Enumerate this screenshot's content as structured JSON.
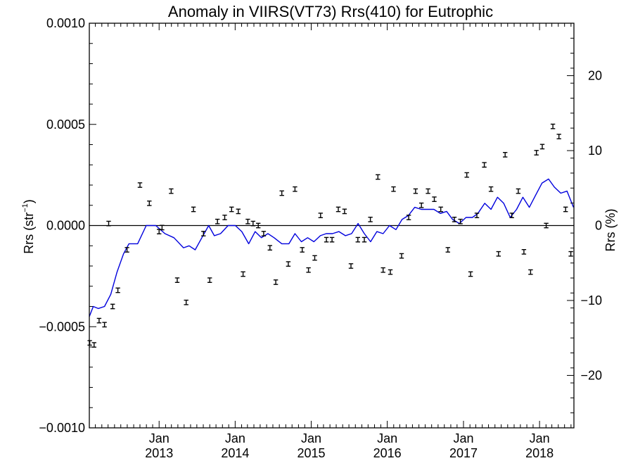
{
  "chart_data": {
    "type": "scatter",
    "title": "Anomaly in VIIRS(VT73) Rrs(410) for Eutrophic",
    "ylabel_left_main": "Rrs (str",
    "ylabel_left_sup": "−1",
    "ylabel_left_close": ")",
    "ylabel_right": "Rrs (%)",
    "xlim": [
      "2012-02-01",
      "2018-06-15"
    ],
    "ylim_left": [
      -0.001,
      0.001
    ],
    "ylim_right": [
      -27,
      27
    ],
    "left_ticks": [
      {
        "value": 0.001,
        "label": "0.0010"
      },
      {
        "value": 0.0005,
        "label": "0.0005"
      },
      {
        "value": 0.0,
        "label": "0.0000"
      },
      {
        "value": -0.0005,
        "label": "−0.0005"
      },
      {
        "value": -0.001,
        "label": "−0.0010"
      }
    ],
    "right_ticks": [
      {
        "value": 20,
        "label": "20"
      },
      {
        "value": 10,
        "label": "10"
      },
      {
        "value": 0,
        "label": "0"
      },
      {
        "value": -10,
        "label": "−10"
      },
      {
        "value": -20,
        "label": "−20"
      }
    ],
    "x_ticks": [
      {
        "date": "2013-01-01",
        "month": "Jan",
        "year": "2013"
      },
      {
        "date": "2014-01-01",
        "month": "Jan",
        "year": "2014"
      },
      {
        "date": "2015-01-01",
        "month": "Jan",
        "year": "2015"
      },
      {
        "date": "2016-01-01",
        "month": "Jan",
        "year": "2016"
      },
      {
        "date": "2017-01-01",
        "month": "Jan",
        "year": "2017"
      },
      {
        "date": "2018-01-01",
        "month": "Jan",
        "year": "2018"
      }
    ],
    "zero_line": true,
    "colors": {
      "points": "#000000",
      "line": "#0000dd",
      "axes": "#000000"
    },
    "series": [
      {
        "kind": "error-bar-points",
        "points": [
          {
            "x": "2012-02-03",
            "y": -0.00058
          },
          {
            "x": "2012-02-24",
            "y": -0.00059
          },
          {
            "x": "2012-03-19",
            "y": -0.00047
          },
          {
            "x": "2012-04-14",
            "y": -0.00049
          },
          {
            "x": "2012-05-04",
            "y": 1e-05
          },
          {
            "x": "2012-05-23",
            "y": -0.0004
          },
          {
            "x": "2012-06-17",
            "y": -0.00032
          },
          {
            "x": "2012-07-31",
            "y": -0.00012
          },
          {
            "x": "2012-10-01",
            "y": 0.0002
          },
          {
            "x": "2012-11-15",
            "y": 0.00011
          },
          {
            "x": "2013-01-01",
            "y": -3e-05
          },
          {
            "x": "2013-01-15",
            "y": -1e-05
          },
          {
            "x": "2013-02-28",
            "y": 0.00017
          },
          {
            "x": "2013-03-29",
            "y": -0.00027
          },
          {
            "x": "2013-05-11",
            "y": -0.00038
          },
          {
            "x": "2013-06-15",
            "y": 8e-05
          },
          {
            "x": "2013-08-02",
            "y": -4e-05
          },
          {
            "x": "2013-09-01",
            "y": -0.00027
          },
          {
            "x": "2013-10-08",
            "y": 2e-05
          },
          {
            "x": "2013-11-12",
            "y": 4e-05
          },
          {
            "x": "2013-12-15",
            "y": 8e-05
          },
          {
            "x": "2014-01-16",
            "y": 7e-05
          },
          {
            "x": "2014-02-08",
            "y": -0.00024
          },
          {
            "x": "2014-03-03",
            "y": 2e-05
          },
          {
            "x": "2014-03-28",
            "y": 1e-05
          },
          {
            "x": "2014-04-22",
            "y": 0.0
          },
          {
            "x": "2014-05-18",
            "y": -4e-05
          },
          {
            "x": "2014-06-17",
            "y": -0.00011
          },
          {
            "x": "2014-07-15",
            "y": -0.00028
          },
          {
            "x": "2014-08-13",
            "y": 0.00016
          },
          {
            "x": "2014-09-13",
            "y": -0.00019
          },
          {
            "x": "2014-10-15",
            "y": 0.00018
          },
          {
            "x": "2014-11-19",
            "y": -0.00012
          },
          {
            "x": "2014-12-19",
            "y": -0.00022
          },
          {
            "x": "2015-01-18",
            "y": -0.00016
          },
          {
            "x": "2015-02-15",
            "y": 5e-05
          },
          {
            "x": "2015-03-15",
            "y": -7e-05
          },
          {
            "x": "2015-04-11",
            "y": -7e-05
          },
          {
            "x": "2015-05-11",
            "y": 8e-05
          },
          {
            "x": "2015-06-10",
            "y": 7e-05
          },
          {
            "x": "2015-07-11",
            "y": -0.0002
          },
          {
            "x": "2015-08-13",
            "y": -7e-05
          },
          {
            "x": "2015-09-13",
            "y": -7e-05
          },
          {
            "x": "2015-10-12",
            "y": 3e-05
          },
          {
            "x": "2015-11-17",
            "y": 0.00024
          },
          {
            "x": "2015-12-12",
            "y": -0.00022
          },
          {
            "x": "2016-01-16",
            "y": -0.00023
          },
          {
            "x": "2016-01-31",
            "y": 0.00018
          },
          {
            "x": "2016-03-10",
            "y": -0.00015
          },
          {
            "x": "2016-04-13",
            "y": 4e-05
          },
          {
            "x": "2016-05-16",
            "y": 0.00017
          },
          {
            "x": "2016-06-13",
            "y": 0.0001
          },
          {
            "x": "2016-07-15",
            "y": 0.00017
          },
          {
            "x": "2016-08-14",
            "y": 0.00013
          },
          {
            "x": "2016-09-14",
            "y": 8e-05
          },
          {
            "x": "2016-10-18",
            "y": -0.00012
          },
          {
            "x": "2016-11-18",
            "y": 3e-05
          },
          {
            "x": "2016-12-17",
            "y": 2e-05
          },
          {
            "x": "2017-01-17",
            "y": 0.00025
          },
          {
            "x": "2017-02-04",
            "y": -0.00024
          },
          {
            "x": "2017-03-06",
            "y": 5e-05
          },
          {
            "x": "2017-04-11",
            "y": 0.0003
          },
          {
            "x": "2017-05-13",
            "y": 0.00018
          },
          {
            "x": "2017-06-18",
            "y": -0.00014
          },
          {
            "x": "2017-07-20",
            "y": 0.00035
          },
          {
            "x": "2017-08-21",
            "y": 5e-05
          },
          {
            "x": "2017-09-21",
            "y": 0.00017
          },
          {
            "x": "2017-10-18",
            "y": -0.00013
          },
          {
            "x": "2017-11-19",
            "y": -0.00023
          },
          {
            "x": "2017-12-17",
            "y": 0.00036
          },
          {
            "x": "2018-01-14",
            "y": 0.00039
          },
          {
            "x": "2018-02-02",
            "y": 0.0
          },
          {
            "x": "2018-03-06",
            "y": 0.00049
          },
          {
            "x": "2018-04-04",
            "y": 0.00044
          },
          {
            "x": "2018-05-06",
            "y": 8e-05
          },
          {
            "x": "2018-05-31",
            "y": -0.00014
          }
        ]
      },
      {
        "kind": "line",
        "points": [
          {
            "x": "2012-02-01",
            "y": -0.00045
          },
          {
            "x": "2012-02-20",
            "y": -0.0004
          },
          {
            "x": "2012-03-15",
            "y": -0.00041
          },
          {
            "x": "2012-04-14",
            "y": -0.0004
          },
          {
            "x": "2012-05-14",
            "y": -0.00034
          },
          {
            "x": "2012-06-13",
            "y": -0.00023
          },
          {
            "x": "2012-07-14",
            "y": -0.00014
          },
          {
            "x": "2012-08-09",
            "y": -9e-05
          },
          {
            "x": "2012-09-20",
            "y": -9e-05
          },
          {
            "x": "2012-10-31",
            "y": 0.0
          },
          {
            "x": "2012-12-16",
            "y": 0.0
          },
          {
            "x": "2013-01-29",
            "y": -4e-05
          },
          {
            "x": "2013-03-13",
            "y": -6e-05
          },
          {
            "x": "2013-04-28",
            "y": -0.00011
          },
          {
            "x": "2013-05-25",
            "y": -0.0001
          },
          {
            "x": "2013-06-23",
            "y": -0.00012
          },
          {
            "x": "2013-07-25",
            "y": -6e-05
          },
          {
            "x": "2013-08-27",
            "y": 0.0
          },
          {
            "x": "2013-09-23",
            "y": -5e-05
          },
          {
            "x": "2013-10-23",
            "y": -4e-05
          },
          {
            "x": "2013-11-28",
            "y": 0.0
          },
          {
            "x": "2014-01-02",
            "y": 0.0
          },
          {
            "x": "2014-02-02",
            "y": -3e-05
          },
          {
            "x": "2014-03-07",
            "y": -9e-05
          },
          {
            "x": "2014-04-07",
            "y": -3e-05
          },
          {
            "x": "2014-05-07",
            "y": -6e-05
          },
          {
            "x": "2014-06-07",
            "y": -4e-05
          },
          {
            "x": "2014-07-07",
            "y": -6e-05
          },
          {
            "x": "2014-08-13",
            "y": -9e-05
          },
          {
            "x": "2014-09-16",
            "y": -9e-05
          },
          {
            "x": "2014-10-15",
            "y": -4e-05
          },
          {
            "x": "2014-11-15",
            "y": -8e-05
          },
          {
            "x": "2014-12-15",
            "y": -6e-05
          },
          {
            "x": "2015-01-14",
            "y": -8e-05
          },
          {
            "x": "2015-02-14",
            "y": -5e-05
          },
          {
            "x": "2015-03-14",
            "y": -4e-05
          },
          {
            "x": "2015-04-13",
            "y": -4e-05
          },
          {
            "x": "2015-05-14",
            "y": -3e-05
          },
          {
            "x": "2015-06-14",
            "y": -5e-05
          },
          {
            "x": "2015-07-14",
            "y": -4e-05
          },
          {
            "x": "2015-08-14",
            "y": 1e-05
          },
          {
            "x": "2015-09-13",
            "y": -4e-05
          },
          {
            "x": "2015-10-13",
            "y": -8e-05
          },
          {
            "x": "2015-11-12",
            "y": -3e-05
          },
          {
            "x": "2015-12-12",
            "y": -4e-05
          },
          {
            "x": "2016-01-12",
            "y": 0.0
          },
          {
            "x": "2016-02-12",
            "y": -2e-05
          },
          {
            "x": "2016-03-12",
            "y": 3e-05
          },
          {
            "x": "2016-04-12",
            "y": 5e-05
          },
          {
            "x": "2016-05-12",
            "y": 9e-05
          },
          {
            "x": "2016-06-12",
            "y": 8e-05
          },
          {
            "x": "2016-07-13",
            "y": 8e-05
          },
          {
            "x": "2016-08-12",
            "y": 8e-05
          },
          {
            "x": "2016-09-12",
            "y": 6e-05
          },
          {
            "x": "2016-10-12",
            "y": 7e-05
          },
          {
            "x": "2016-11-10",
            "y": 3e-05
          },
          {
            "x": "2016-12-12",
            "y": 1e-05
          },
          {
            "x": "2017-01-13",
            "y": 4e-05
          },
          {
            "x": "2017-02-13",
            "y": 4e-05
          },
          {
            "x": "2017-03-11",
            "y": 6e-05
          },
          {
            "x": "2017-04-13",
            "y": 0.00011
          },
          {
            "x": "2017-05-13",
            "y": 8e-05
          },
          {
            "x": "2017-06-13",
            "y": 0.00014
          },
          {
            "x": "2017-07-13",
            "y": 0.00011
          },
          {
            "x": "2017-08-13",
            "y": 4e-05
          },
          {
            "x": "2017-09-13",
            "y": 8e-05
          },
          {
            "x": "2017-10-13",
            "y": 0.00014
          },
          {
            "x": "2017-11-13",
            "y": 9e-05
          },
          {
            "x": "2017-12-13",
            "y": 0.00015
          },
          {
            "x": "2018-01-13",
            "y": 0.00021
          },
          {
            "x": "2018-02-13",
            "y": 0.00023
          },
          {
            "x": "2018-03-13",
            "y": 0.00019
          },
          {
            "x": "2018-04-13",
            "y": 0.00016
          },
          {
            "x": "2018-05-13",
            "y": 0.00017
          },
          {
            "x": "2018-06-13",
            "y": 9e-05
          }
        ]
      }
    ]
  }
}
